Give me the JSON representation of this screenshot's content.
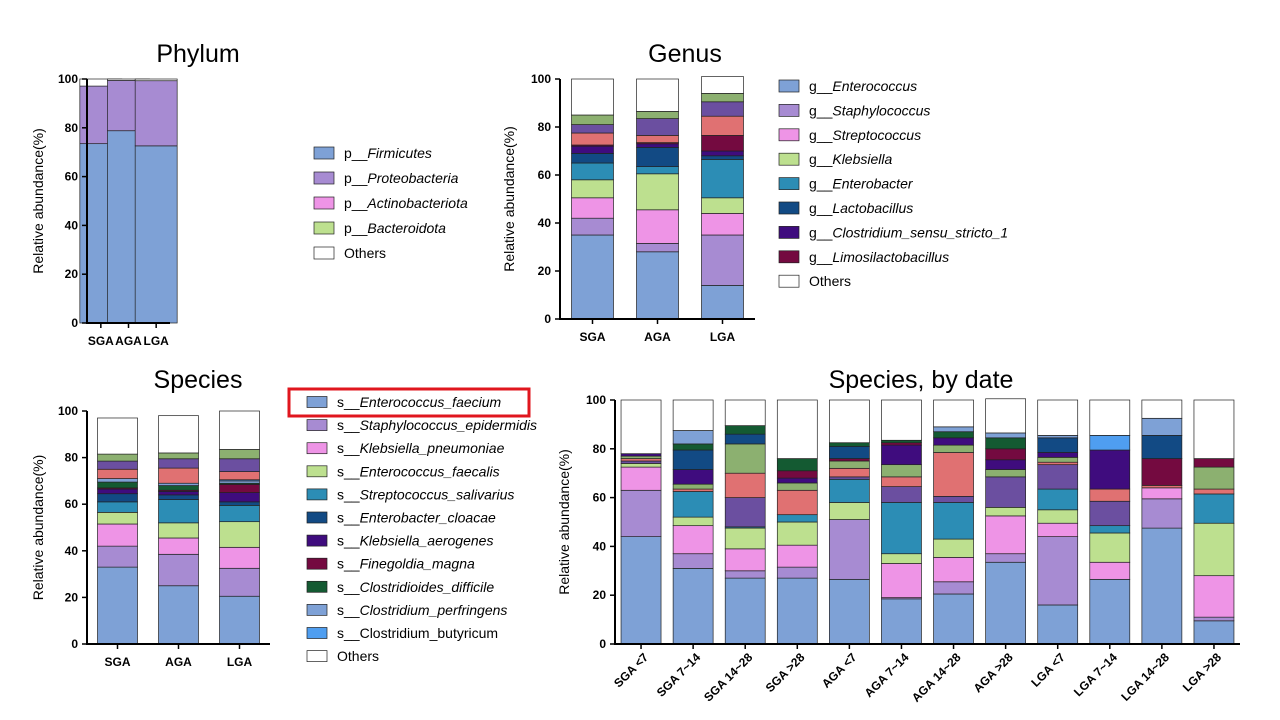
{
  "colors": {
    "Enterococcus_faecium": "#7ea1d6",
    "Staphylococcus_epidermidis": "#a78bd2",
    "Klebsiella_pneumoniae": "#ee94e6",
    "Enterococcus_faecalis": "#bde08f",
    "Streptococcus_salivarius": "#2c8db5",
    "Enterobacter_cloacae": "#124a84",
    "Klebsiella_aerogenes": "#3f0c7e",
    "Finegoldia_magna": "#740a40",
    "Clostridioides_difficile": "#145a32",
    "Clostridium_perfringens": "#7ea1d6",
    "Clostridium_butyricum": "#4f9ef0",
    "Others": "#ffffff",
    "highlight": "#e0161e"
  },
  "chart_data": [
    {
      "id": "phylum",
      "type": "bar",
      "stacked": true,
      "title": "Phylum",
      "ylabel": "Relative abundance(%)",
      "ylim": [
        0,
        100
      ],
      "yticks": [
        "0",
        "20",
        "40",
        "60",
        "80",
        "100"
      ],
      "categories": [
        "SGA",
        "AGA",
        "LGA"
      ],
      "series": [
        {
          "name": "p__Firmicutes",
          "prefix": "p__",
          "label": "Firmicutes",
          "color": "#7ea1d6",
          "values": [
            73.5,
            78.8,
            72.6
          ]
        },
        {
          "name": "p__Proteobacteria",
          "prefix": "p__",
          "label": "Proteobacteria",
          "color": "#a78bd2",
          "values": [
            23.6,
            20.6,
            26.7
          ]
        },
        {
          "name": "p__Actinobacteriota",
          "prefix": "p__",
          "label": "Actinobacteriota",
          "color": "#ee94e6",
          "values": [
            0,
            0,
            0
          ]
        },
        {
          "name": "p__Bacteroidota",
          "prefix": "p__",
          "label": "Bacteroidota",
          "color": "#bde08f",
          "values": [
            0,
            0,
            0
          ]
        },
        {
          "name": "Others",
          "prefix": "",
          "label": "Others",
          "color": "#ffffff",
          "values": [
            2.9,
            0.6,
            0.7
          ]
        }
      ]
    },
    {
      "id": "genus",
      "type": "bar",
      "stacked": true,
      "title": "Genus",
      "ylabel": "Relative abundance(%)",
      "ylim": [
        0,
        100
      ],
      "yticks": [
        "0",
        "20",
        "40",
        "60",
        "80",
        "100"
      ],
      "categories": [
        "SGA",
        "AGA",
        "LGA"
      ],
      "series": [
        {
          "name": "g__Enterococcus",
          "prefix": "g__",
          "label": "Enterococcus",
          "color": "#7ea1d6",
          "values": [
            35,
            28,
            14
          ]
        },
        {
          "name": "g__Staphylococcus",
          "prefix": "g__",
          "label": "Staphylococcus",
          "color": "#a78bd2",
          "values": [
            7,
            3.5,
            21
          ]
        },
        {
          "name": "g__Streptococcus",
          "prefix": "g__",
          "label": "Streptococcus",
          "color": "#ee94e6",
          "values": [
            8.5,
            14,
            9
          ]
        },
        {
          "name": "g__Klebsiella",
          "prefix": "g__",
          "label": "Klebsiella",
          "color": "#bde08f",
          "values": [
            7.5,
            15,
            6.5
          ]
        },
        {
          "name": "g__Enterobacter",
          "prefix": "g__",
          "label": "Enterobacter",
          "color": "#2c8db5",
          "values": [
            7,
            3,
            16
          ]
        },
        {
          "name": "g__Lactobacillus",
          "prefix": "g__",
          "label": "Lactobacillus",
          "color": "#124a84",
          "values": [
            4,
            8,
            1.5
          ]
        },
        {
          "name": "g__Clostridium_sensu_stricto_1",
          "prefix": "g__",
          "label": "Clostridium_sensu_stricto_1",
          "color": "#3f0c7e",
          "values": [
            3,
            1.5,
            2
          ]
        },
        {
          "name": "g__Limosilactobacillus",
          "prefix": "g__",
          "label": "Limosilactobacillus",
          "color": "#740a40",
          "values": [
            0.5,
            0.5,
            6.5
          ]
        },
        {
          "name": "band_a",
          "label": "",
          "color": "#e07172",
          "legend": false,
          "values": [
            5,
            3,
            8
          ]
        },
        {
          "name": "band_b",
          "label": "",
          "color": "#6b4fa0",
          "legend": false,
          "values": [
            3.5,
            7,
            6
          ]
        },
        {
          "name": "band_c",
          "label": "",
          "color": "#8cb070",
          "legend": false,
          "values": [
            4,
            3,
            3.5
          ]
        },
        {
          "name": "Others",
          "prefix": "",
          "label": "Others",
          "color": "#ffffff",
          "values": [
            15,
            13.5,
            7
          ]
        }
      ]
    },
    {
      "id": "species",
      "type": "bar",
      "stacked": true,
      "title": "Species",
      "ylabel": "Relative abundance(%)",
      "ylim": [
        0,
        100
      ],
      "yticks": [
        "0",
        "20",
        "40",
        "60",
        "80",
        "100"
      ],
      "categories": [
        "SGA",
        "AGA",
        "LGA"
      ],
      "series": [
        {
          "name": "s__Enterococcus_faecium",
          "prefix": "s__",
          "label": "Enterococcus_faecium",
          "color": "#7ea1d6",
          "values": [
            33,
            25,
            20.5
          ]
        },
        {
          "name": "s__Staphylococcus_epidermidis",
          "prefix": "s__",
          "label": "Staphylococcus_epidermidis",
          "color": "#a78bd2",
          "values": [
            9,
            13.5,
            12
          ]
        },
        {
          "name": "s__Klebsiella_pneumoniae",
          "prefix": "s__",
          "label": "Klebsiella_pneumoniae",
          "color": "#ee94e6",
          "values": [
            9.5,
            7,
            9
          ]
        },
        {
          "name": "s__Enterococcus_faecalis",
          "prefix": "s__",
          "label": "Enterococcus_faecalis",
          "color": "#bde08f",
          "values": [
            5,
            6.5,
            11
          ]
        },
        {
          "name": "s__Streptococcus_salivarius",
          "prefix": "s__",
          "label": "Streptococcus_salivarius",
          "color": "#2c8db5",
          "values": [
            4.5,
            10,
            7
          ]
        },
        {
          "name": "s__Enterobacter_cloacae",
          "prefix": "s__",
          "label": "Enterobacter_cloacae",
          "color": "#124a84",
          "values": [
            3.5,
            2,
            1.5
          ]
        },
        {
          "name": "s__Klebsiella_aerogenes",
          "prefix": "s__",
          "label": "Klebsiella_aerogenes",
          "color": "#3f0c7e",
          "values": [
            2,
            1.5,
            4
          ]
        },
        {
          "name": "s__Finegoldia_magna",
          "prefix": "s__",
          "label": "Finegoldia_magna",
          "color": "#740a40",
          "values": [
            0.5,
            0.5,
            3.5
          ]
        },
        {
          "name": "s__Clostridioides_difficile",
          "prefix": "s__",
          "label": "Clostridioides_difficile",
          "color": "#145a32",
          "values": [
            2.5,
            2,
            0.5
          ]
        },
        {
          "name": "s__Clostridium_perfringens",
          "prefix": "s__",
          "label": "Clostridium_perfringens",
          "color": "#7ea1d6",
          "values": [
            1.5,
            1,
            1
          ]
        },
        {
          "name": "s__Clostridium_butyricum",
          "prefix": "s__",
          "label": "Clostridium_butyricum",
          "color": "#4f9ef0",
          "italic": false,
          "values": [
            0,
            0,
            0.5
          ]
        },
        {
          "name": "band_a",
          "label": "",
          "color": "#e07172",
          "legend": false,
          "values": [
            4,
            6.5,
            3.5
          ]
        },
        {
          "name": "band_b",
          "label": "",
          "color": "#6b4fa0",
          "legend": false,
          "values": [
            3.5,
            4,
            5.5
          ]
        },
        {
          "name": "band_c",
          "label": "",
          "color": "#8cb070",
          "legend": false,
          "values": [
            3,
            2.5,
            4
          ]
        },
        {
          "name": "Others",
          "prefix": "",
          "label": "Others",
          "color": "#ffffff",
          "italic": false,
          "values": [
            15.5,
            16,
            16.5
          ]
        }
      ]
    },
    {
      "id": "species_by_date",
      "type": "bar",
      "stacked": true,
      "title": "Species, by date",
      "ylabel": "Relative abundance(%)",
      "ylim": [
        0,
        100
      ],
      "yticks": [
        "0",
        "20",
        "40",
        "60",
        "80",
        "100"
      ],
      "categories": [
        "SGA <7",
        "SGA 7~14",
        "SGA 14~28",
        "SGA >28",
        "AGA <7",
        "AGA 7~14",
        "AGA 14~28",
        "AGA >28",
        "LGA <7",
        "LGA 7~14",
        "LGA 14~28",
        "LGA >28"
      ],
      "series": [
        {
          "name": "s__Enterococcus_faecium",
          "color": "#7ea1d6",
          "values": [
            44,
            31,
            27,
            27,
            26.5,
            18.5,
            20.5,
            33.5,
            16,
            26.5,
            47.5,
            9.5
          ]
        },
        {
          "name": "s__Staphylococcus_epidermidis",
          "color": "#a78bd2",
          "values": [
            19,
            6,
            3,
            4.5,
            24.5,
            0.5,
            5,
            3.5,
            28,
            0,
            12,
            1.5
          ]
        },
        {
          "name": "s__Klebsiella_pneumoniae",
          "color": "#ee94e6",
          "values": [
            9.5,
            11.5,
            9,
            9,
            0,
            14,
            10,
            15.5,
            5.5,
            7,
            4.5,
            17
          ]
        },
        {
          "name": "s__Enterococcus_faecalis",
          "color": "#bde08f",
          "values": [
            1.5,
            3.5,
            8.5,
            9.5,
            7,
            4,
            7.5,
            3.5,
            5.5,
            12,
            0,
            21.5
          ]
        },
        {
          "name": "s__Streptococcus_salivarius",
          "color": "#2c8db5",
          "values": [
            0,
            10.5,
            0.5,
            3,
            9.5,
            21,
            15,
            0,
            8.5,
            3,
            0,
            12
          ]
        },
        {
          "name": "band_b",
          "color": "#6b4fa0",
          "values": [
            1,
            0,
            12,
            0,
            1,
            6.5,
            2.5,
            12.5,
            10,
            10,
            0,
            0
          ]
        },
        {
          "name": "band_a",
          "color": "#e07172",
          "values": [
            1,
            1,
            10,
            10,
            3.5,
            4,
            18,
            0,
            1,
            5,
            1,
            2
          ]
        },
        {
          "name": "band_c",
          "color": "#8cb070",
          "values": [
            1,
            2,
            12,
            3,
            3,
            5,
            3,
            3,
            2,
            0,
            0,
            9
          ]
        },
        {
          "name": "s__Klebsiella_aerogenes",
          "color": "#3f0c7e",
          "values": [
            1,
            6,
            0,
            2,
            0,
            8,
            3,
            4,
            2,
            16,
            0,
            0
          ]
        },
        {
          "name": "s__Finegoldia_magna",
          "color": "#740a40",
          "values": [
            0,
            0,
            0,
            3,
            1,
            1,
            0,
            4.5,
            0,
            0,
            11,
            3.5
          ]
        },
        {
          "name": "s__Enterobacter_cloacae",
          "color": "#124a84",
          "values": [
            0,
            8,
            4,
            0,
            5,
            0,
            0,
            0,
            6,
            0,
            9.5,
            0
          ]
        },
        {
          "name": "s__Clostridioides_difficile",
          "color": "#145a32",
          "values": [
            0,
            2.5,
            3.5,
            5,
            1.5,
            1,
            2.5,
            4.5,
            0,
            0,
            0,
            0
          ]
        },
        {
          "name": "s__Clostridium_perfringens",
          "color": "#7ea1d6",
          "values": [
            0,
            5.5,
            0,
            0,
            0,
            0,
            2,
            2,
            1,
            0,
            7,
            0
          ]
        },
        {
          "name": "s__Clostridium_butyricum",
          "color": "#4f9ef0",
          "values": [
            0,
            0,
            0,
            0,
            0,
            0,
            0,
            0,
            0,
            6,
            0,
            0
          ]
        },
        {
          "name": "Others",
          "color": "#ffffff",
          "values": [
            22,
            12.5,
            10.5,
            24,
            17.5,
            16.5,
            11,
            14,
            14.5,
            14.5,
            7.5,
            24
          ]
        }
      ]
    }
  ]
}
